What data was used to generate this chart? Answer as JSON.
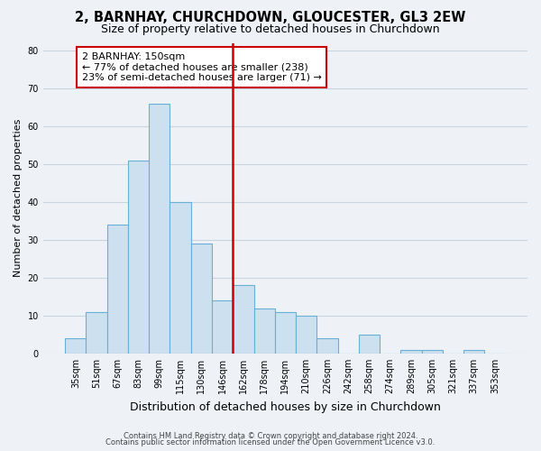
{
  "title": "2, BARNHAY, CHURCHDOWN, GLOUCESTER, GL3 2EW",
  "subtitle": "Size of property relative to detached houses in Churchdown",
  "xlabel": "Distribution of detached houses by size in Churchdown",
  "ylabel": "Number of detached properties",
  "bar_labels": [
    "35sqm",
    "51sqm",
    "67sqm",
    "83sqm",
    "99sqm",
    "115sqm",
    "130sqm",
    "146sqm",
    "162sqm",
    "178sqm",
    "194sqm",
    "210sqm",
    "226sqm",
    "242sqm",
    "258sqm",
    "274sqm",
    "289sqm",
    "305sqm",
    "321sqm",
    "337sqm",
    "353sqm"
  ],
  "bar_heights": [
    4,
    11,
    34,
    51,
    66,
    40,
    29,
    14,
    18,
    12,
    11,
    10,
    4,
    0,
    5,
    0,
    1,
    1,
    0,
    1,
    0
  ],
  "bar_color": "#cce0f0",
  "bar_edge_color": "#6aafd4",
  "vline_color": "#cc0000",
  "annotation_line1": "2 BARNHAY: 150sqm",
  "annotation_line2": "← 77% of detached houses are smaller (238)",
  "annotation_line3": "23% of semi-detached houses are larger (71) →",
  "annotation_box_edgecolor": "#cc0000",
  "annotation_box_facecolor": "#ffffff",
  "ylim": [
    0,
    82
  ],
  "yticks": [
    0,
    10,
    20,
    30,
    40,
    50,
    60,
    70,
    80
  ],
  "footer_line1": "Contains HM Land Registry data © Crown copyright and database right 2024.",
  "footer_line2": "Contains public sector information licensed under the Open Government Licence v3.0.",
  "bg_color": "#eef2f7",
  "grid_color": "#c8d4e0",
  "title_fontsize": 10.5,
  "subtitle_fontsize": 9,
  "xlabel_fontsize": 9,
  "ylabel_fontsize": 8,
  "tick_fontsize": 7,
  "annotation_fontsize": 8,
  "footer_fontsize": 6
}
